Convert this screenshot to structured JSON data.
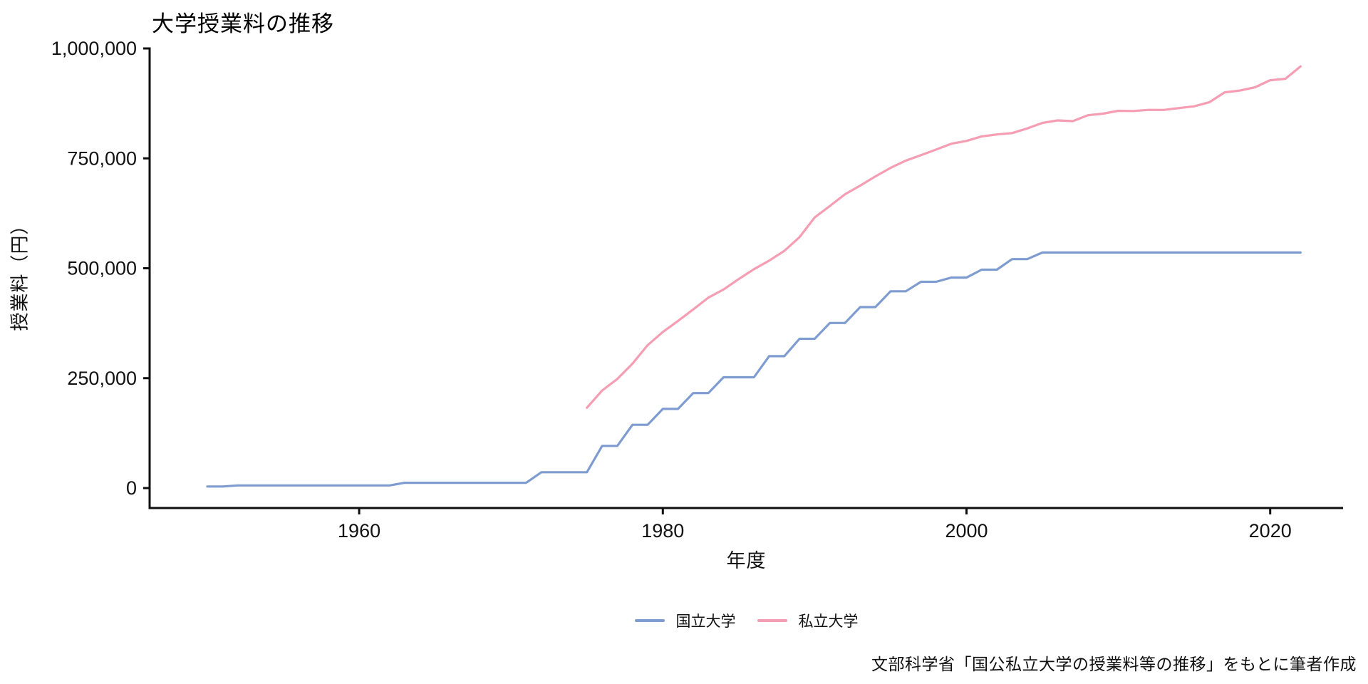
{
  "title": "大学授業料の推移",
  "caption": "文部科学省「国公私立大学の授業料等の推移」をもとに筆者作成",
  "chart_data": {
    "type": "line",
    "title": "大学授業料の推移",
    "xlabel": "年度",
    "ylabel": "授業料（円）",
    "xlim": [
      1946.2,
      2024.8
    ],
    "ylim": [
      0,
      1000000
    ],
    "grid": false,
    "legend_position": "bottom-center",
    "axis_color": "#0f0f0f",
    "x_ticks": [
      1960,
      1980,
      2000,
      2020
    ],
    "x_tick_labels": [
      "1960",
      "1980",
      "2000",
      "2020"
    ],
    "y_ticks": [
      0,
      250000,
      500000,
      750000,
      1000000
    ],
    "y_tick_labels": [
      "0",
      "250,000",
      "500,000",
      "750,000",
      "1,000,000"
    ],
    "series": [
      {
        "name": "国立大学",
        "color": "#7E9CD0",
        "x": [
          1950,
          1951,
          1952,
          1953,
          1954,
          1955,
          1956,
          1957,
          1958,
          1959,
          1960,
          1961,
          1962,
          1963,
          1964,
          1965,
          1966,
          1967,
          1968,
          1969,
          1970,
          1971,
          1972,
          1973,
          1974,
          1975,
          1976,
          1977,
          1978,
          1979,
          1980,
          1981,
          1982,
          1983,
          1984,
          1985,
          1986,
          1987,
          1988,
          1989,
          1990,
          1991,
          1992,
          1993,
          1994,
          1995,
          1996,
          1997,
          1998,
          1999,
          2000,
          2001,
          2002,
          2003,
          2004,
          2005,
          2006,
          2007,
          2008,
          2009,
          2010,
          2011,
          2012,
          2013,
          2014,
          2015,
          2016,
          2017,
          2018,
          2019,
          2020,
          2021,
          2022
        ],
        "values": [
          3600,
          3600,
          6000,
          6000,
          6000,
          6000,
          6000,
          6000,
          6000,
          6000,
          6000,
          6000,
          6000,
          12000,
          12000,
          12000,
          12000,
          12000,
          12000,
          12000,
          12000,
          12000,
          36000,
          36000,
          36000,
          36000,
          96000,
          96000,
          144000,
          144000,
          180000,
          180000,
          216000,
          216000,
          252000,
          252000,
          252000,
          300000,
          300000,
          339600,
          339600,
          375600,
          375600,
          411600,
          411600,
          447600,
          447600,
          469200,
          469200,
          478800,
          478800,
          496800,
          496800,
          520800,
          520800,
          535800,
          535800,
          535800,
          535800,
          535800,
          535800,
          535800,
          535800,
          535800,
          535800,
          535800,
          535800,
          535800,
          535800,
          535800,
          535800,
          535800,
          535800
        ]
      },
      {
        "name": "私立大学",
        "color": "#F59DB3",
        "x": [
          1975,
          1976,
          1977,
          1978,
          1979,
          1980,
          1981,
          1982,
          1983,
          1984,
          1985,
          1986,
          1987,
          1988,
          1989,
          1990,
          1991,
          1992,
          1993,
          1994,
          1995,
          1996,
          1997,
          1998,
          1999,
          2000,
          2001,
          2002,
          2003,
          2004,
          2005,
          2006,
          2007,
          2008,
          2009,
          2010,
          2011,
          2012,
          2013,
          2014,
          2015,
          2016,
          2017,
          2018,
          2019,
          2020,
          2021,
          2022
        ],
        "values": [
          182677,
          221844,
          248066,
          282951,
          325198,
          355156,
          380253,
          406261,
          433200,
          451722,
          475325,
          497826,
          517395,
          539591,
          570584,
          615486,
          641608,
          668460,
          688046,
          708847,
          728365,
          744733,
          757158,
          770024,
          783298,
          789659,
          799973,
          804367,
          807413,
          817952,
          830583,
          836297,
          834751,
          848178,
          851621,
          858265,
          857763,
          860266,
          860072,
          864384,
          868447,
          877735,
          900093,
          904146,
          911716,
          927705,
          930943,
          959205
        ]
      }
    ]
  }
}
